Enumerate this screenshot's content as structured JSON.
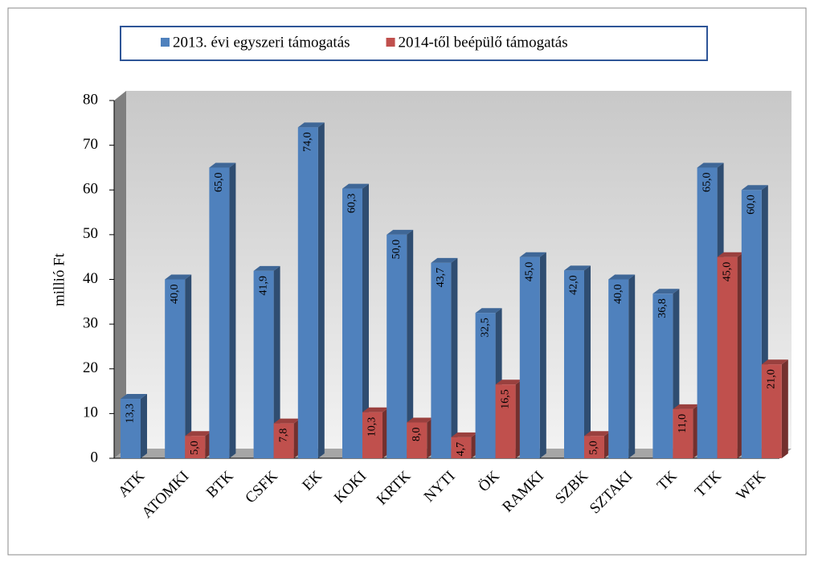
{
  "chart_data": {
    "type": "bar3d",
    "ylabel": "millió Ft",
    "categories": [
      "ATK",
      "ATOMKI",
      "BTK",
      "CSFK",
      "EK",
      "KOKI",
      "KRTK",
      "NYTI",
      "ÖK",
      "RAMKI",
      "SZBK",
      "SZTAKI",
      "TK",
      "TTK",
      "WFK"
    ],
    "series": [
      {
        "name": "2013. évi egyszeri támogatás",
        "color": "#4f81bd",
        "values": [
          13.3,
          40.0,
          65.0,
          41.9,
          74.0,
          60.3,
          50.0,
          43.7,
          32.5,
          45.0,
          42.0,
          40.0,
          36.8,
          65.0,
          60.0
        ],
        "value_labels": [
          "13,3",
          "40,0",
          "65,0",
          "41,9",
          "74,0",
          "60,3",
          "50,0",
          "43,7",
          "32,5",
          "45,0",
          "42,0",
          "40,0",
          "36,8",
          "65,0",
          "60,0"
        ]
      },
      {
        "name": "2014-től beépülő támogatás",
        "color": "#c0504d",
        "values": [
          null,
          5.0,
          null,
          7.8,
          null,
          10.3,
          8.0,
          4.7,
          16.5,
          null,
          5.0,
          null,
          11.0,
          45.0,
          21.0
        ],
        "value_labels": [
          null,
          "5,0",
          null,
          "7,8",
          null,
          "10,3",
          "8,0",
          "4,7",
          "16,5",
          null,
          "5,0",
          null,
          "11,0",
          "45,0",
          "21,0"
        ]
      }
    ],
    "ylim": [
      0,
      80
    ],
    "yticks": [
      0,
      10,
      20,
      30,
      40,
      50,
      60,
      70,
      80
    ],
    "grid": false,
    "legend": "top"
  }
}
